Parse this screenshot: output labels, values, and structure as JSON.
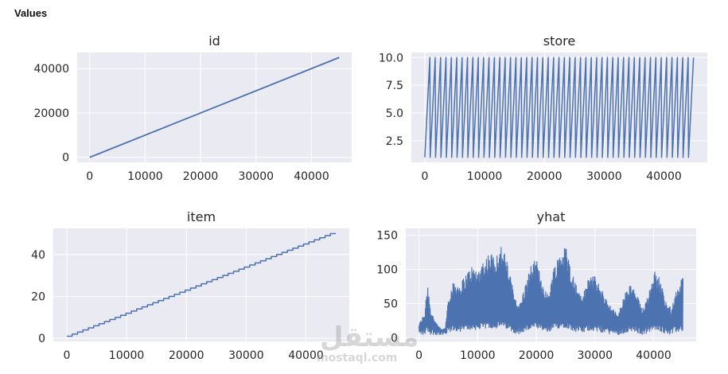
{
  "header": {
    "title": "Values"
  },
  "watermark": {
    "brand": "مستقل",
    "site": "mostaql.com"
  },
  "style": {
    "panel_bg": "#eaeaf2",
    "grid": "#ffffff",
    "line": "#4c72b0",
    "tick_text": "#262626"
  },
  "chart_data": [
    {
      "id": "id",
      "type": "line",
      "title": "id",
      "kind": "linear",
      "x": [
        0,
        45000
      ],
      "y": [
        0,
        45000
      ],
      "xlim": [
        -2250,
        47250
      ],
      "ylim": [
        -2250,
        47250
      ],
      "xticks": [
        0,
        10000,
        20000,
        30000,
        40000
      ],
      "yticks": [
        0,
        20000,
        40000
      ],
      "grid": true
    },
    {
      "id": "store",
      "type": "line",
      "title": "store",
      "kind": "sawtooth",
      "cycle_period": 900,
      "cycles": 50,
      "range": [
        1,
        10
      ],
      "xlim": [
        -2250,
        47250
      ],
      "ylim": [
        0.55,
        10.45
      ],
      "xticks": [
        0,
        10000,
        20000,
        30000,
        40000
      ],
      "yticks": [
        2.5,
        5.0,
        7.5,
        10.0
      ],
      "ytick_labels": [
        "2.5",
        "5.0",
        "7.5",
        "10.0"
      ],
      "grid": true
    },
    {
      "id": "item",
      "type": "line",
      "title": "item",
      "kind": "step",
      "step_width": 900,
      "range": [
        1,
        50
      ],
      "xlim": [
        -2250,
        47250
      ],
      "ylim": [
        -1.45,
        52.45
      ],
      "xticks": [
        0,
        10000,
        20000,
        30000,
        40000
      ],
      "yticks": [
        0,
        20,
        40
      ],
      "grid": true
    },
    {
      "id": "yhat",
      "type": "line",
      "title": "yhat",
      "kind": "noisy",
      "x_range": [
        0,
        45000
      ],
      "envelope": [
        [
          0,
          20
        ],
        [
          1000,
          35
        ],
        [
          1200,
          60
        ],
        [
          1500,
          75
        ],
        [
          2000,
          40
        ],
        [
          2500,
          30
        ],
        [
          3000,
          20
        ],
        [
          3500,
          15
        ],
        [
          4000,
          12
        ],
        [
          4500,
          15
        ],
        [
          5000,
          60
        ],
        [
          6000,
          80
        ],
        [
          7000,
          75
        ],
        [
          8000,
          90
        ],
        [
          9000,
          100
        ],
        [
          10000,
          95
        ],
        [
          11000,
          110
        ],
        [
          12000,
          120
        ],
        [
          13000,
          115
        ],
        [
          14000,
          130
        ],
        [
          15000,
          110
        ],
        [
          16000,
          70
        ],
        [
          17000,
          45
        ],
        [
          18000,
          70
        ],
        [
          19000,
          100
        ],
        [
          20000,
          110
        ],
        [
          21000,
          80
        ],
        [
          22000,
          60
        ],
        [
          23000,
          100
        ],
        [
          24000,
          120
        ],
        [
          25000,
          130
        ],
        [
          26000,
          95
        ],
        [
          27000,
          70
        ],
        [
          28000,
          60
        ],
        [
          29000,
          90
        ],
        [
          30000,
          85
        ],
        [
          31000,
          70
        ],
        [
          32000,
          55
        ],
        [
          33000,
          40
        ],
        [
          34000,
          35
        ],
        [
          35000,
          60
        ],
        [
          36000,
          75
        ],
        [
          37000,
          65
        ],
        [
          38000,
          40
        ],
        [
          39000,
          60
        ],
        [
          40000,
          95
        ],
        [
          41000,
          85
        ],
        [
          42000,
          55
        ],
        [
          43000,
          40
        ],
        [
          44000,
          70
        ],
        [
          45000,
          85
        ]
      ],
      "xlim": [
        -2250,
        47250
      ],
      "ylim": [
        -5,
        160
      ],
      "xticks": [
        0,
        10000,
        20000,
        30000,
        40000
      ],
      "yticks": [
        0,
        50,
        100,
        150
      ],
      "grid": true
    }
  ]
}
